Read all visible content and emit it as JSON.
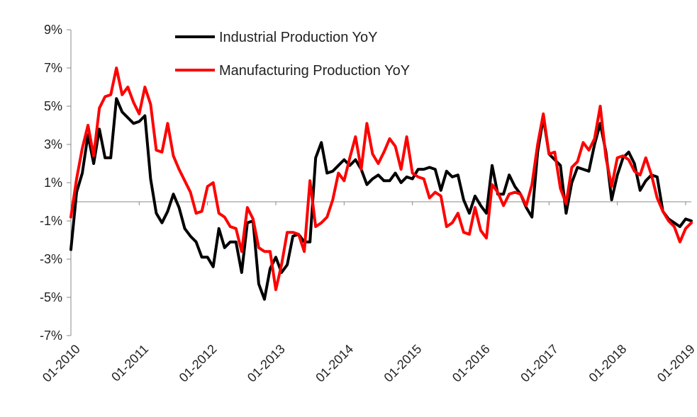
{
  "chart_data": {
    "type": "line",
    "title": "",
    "xlabel": "",
    "ylabel": "",
    "ylim": [
      -7,
      9
    ],
    "y_ticks": [
      9,
      7,
      5,
      3,
      1,
      -1,
      -3,
      -5,
      -7
    ],
    "y_tick_labels": [
      "9%",
      "7%",
      "5%",
      "3%",
      "1%",
      "-1%",
      "-3%",
      "-5%",
      "-7%"
    ],
    "x_ticks": [
      "2010-01",
      "2011-01",
      "2012-01",
      "2013-01",
      "2014-01",
      "2015-01",
      "2016-01",
      "2017-01",
      "2018-01",
      "2019-01"
    ],
    "x_tick_labels": [
      "01-2010",
      "01-2011",
      "01-2012",
      "01-2013",
      "01-2014",
      "01-2015",
      "01-2016",
      "01-2017",
      "01-2018",
      "01-2019"
    ],
    "x_start": "2010-01",
    "zero_line": true,
    "legend_position": "top-left",
    "series": [
      {
        "name": "Industrial Production YoY",
        "color": "#000000",
        "values": [
          -2.5,
          0.5,
          1.5,
          3.5,
          2.0,
          3.8,
          2.3,
          2.3,
          5.4,
          4.7,
          4.4,
          4.1,
          4.2,
          4.5,
          1.2,
          -0.6,
          -1.1,
          -0.5,
          0.4,
          -0.3,
          -1.4,
          -1.8,
          -2.1,
          -2.9,
          -2.9,
          -3.4,
          -1.4,
          -2.4,
          -2.1,
          -2.1,
          -3.7,
          -1.1,
          -1.0,
          -4.3,
          -5.1,
          -3.5,
          -2.9,
          -3.7,
          -3.3,
          -1.8,
          -1.7,
          -2.1,
          -2.1,
          2.3,
          3.1,
          1.5,
          1.6,
          1.9,
          2.2,
          1.9,
          2.2,
          1.7,
          0.9,
          1.2,
          1.4,
          1.1,
          1.1,
          1.5,
          1.0,
          1.3,
          1.2,
          1.7,
          1.7,
          1.8,
          1.7,
          0.6,
          1.6,
          1.3,
          1.4,
          0.1,
          -0.6,
          0.3,
          -0.2,
          -0.6,
          1.9,
          0.4,
          0.4,
          1.4,
          0.8,
          0.4,
          -0.3,
          -0.8,
          2.6,
          4.4,
          2.5,
          2.2,
          1.9,
          -0.6,
          1.0,
          1.8,
          1.7,
          1.6,
          3.0,
          4.1,
          2.6,
          0.1,
          1.4,
          2.3,
          2.6,
          2.0,
          0.6,
          1.1,
          1.4,
          1.3,
          -0.5,
          -0.9,
          -1.1,
          -1.3,
          -0.9,
          -1.0
        ]
      },
      {
        "name": "Manufacturing Production YoY",
        "color": "#ff0000",
        "values": [
          -0.8,
          1.2,
          2.8,
          4.0,
          2.4,
          4.9,
          5.5,
          5.6,
          7.0,
          5.6,
          6.0,
          5.2,
          4.6,
          6.0,
          5.1,
          2.7,
          2.6,
          4.1,
          2.4,
          1.7,
          1.1,
          0.5,
          -0.6,
          -0.5,
          0.8,
          1.0,
          -0.6,
          -0.8,
          -1.3,
          -1.4,
          -2.6,
          -0.3,
          -0.9,
          -2.4,
          -2.6,
          -2.6,
          -4.6,
          -3.3,
          -1.6,
          -1.6,
          -1.7,
          -2.6,
          1.1,
          -1.3,
          -1.1,
          -0.8,
          0.1,
          1.5,
          1.1,
          2.3,
          3.4,
          1.7,
          4.1,
          2.5,
          2.0,
          2.6,
          3.3,
          2.9,
          1.7,
          3.4,
          1.5,
          1.3,
          1.2,
          0.2,
          0.5,
          0.3,
          -1.3,
          -1.1,
          -0.6,
          -1.6,
          -1.7,
          -0.3,
          -1.5,
          -1.9,
          0.9,
          0.5,
          -0.2,
          0.4,
          0.5,
          0.4,
          -0.2,
          0.9,
          3.0,
          4.6,
          2.5,
          2.6,
          0.7,
          -0.1,
          1.8,
          2.1,
          3.1,
          2.7,
          3.3,
          5.0,
          2.3,
          0.8,
          2.3,
          2.4,
          2.2,
          1.6,
          1.4,
          2.3,
          1.4,
          0.2,
          -0.5,
          -1.0,
          -1.3,
          -2.1,
          -1.4,
          -1.1
        ]
      }
    ]
  }
}
